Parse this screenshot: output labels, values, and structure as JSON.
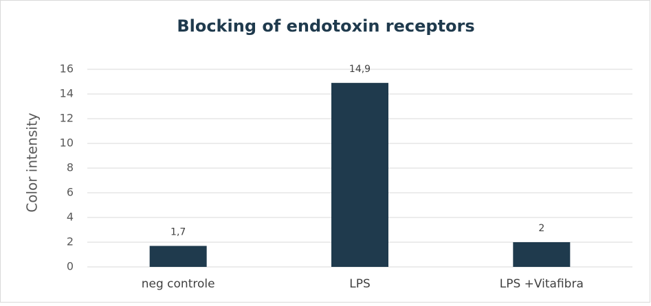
{
  "chart_data": {
    "type": "bar",
    "title": "Blocking of endotoxin receptors",
    "y_label": "Color intensity",
    "categories": [
      "neg controle",
      "LPS",
      "LPS +Vitafibra"
    ],
    "values": [
      1.7,
      14.9,
      2
    ],
    "value_labels": [
      "1,7",
      "14,9",
      "2"
    ],
    "color": "#1f3a4d",
    "ylim": [
      0,
      16
    ],
    "yticks": [
      0,
      2,
      4,
      6,
      8,
      10,
      12,
      14,
      16
    ],
    "grid": true
  }
}
